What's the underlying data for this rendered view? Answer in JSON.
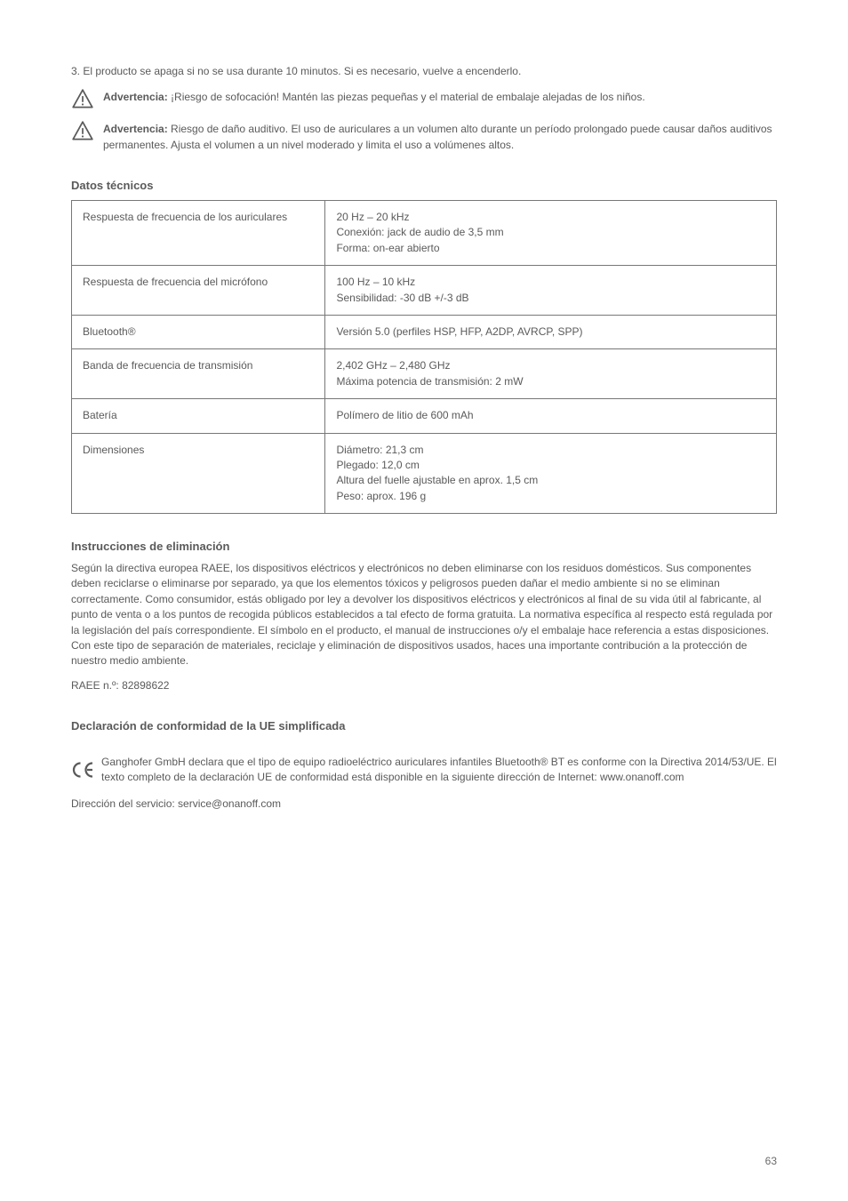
{
  "warnings": {
    "w1_bold": "Advertencia:",
    "w1_text": " ¡Riesgo de sofocación! Mantén las piezas pequeñas y el material de embalaje alejadas de los niños.",
    "w2_bold": "Advertencia:",
    "w2_text": " Riesgo de daño auditivo. El uso de auriculares a un volumen alto durante un período prolongado puede causar daños auditivos permanentes. Ajusta el volumen a un nivel moderado y limita el uso a volúmenes altos.",
    "w3": "3. El producto se apaga si no se usa durante 10 minutos. Si es necesario, vuelve a encenderlo."
  },
  "specs": {
    "title": "Datos técnicos",
    "rows": [
      {
        "l": "Respuesta de frecuencia de los auriculares",
        "r": "20 Hz – 20 kHz\nConexión: jack de audio de 3,5 mm\nForma: on-ear abierto"
      },
      {
        "l": "Respuesta de frecuencia del micrófono",
        "r": "100 Hz – 10 kHz\nSensibilidad: -30 dB +/-3 dB"
      },
      {
        "l": "Bluetooth®",
        "r": "Versión 5.0 (perfiles HSP, HFP, A2DP, AVRCP, SPP)"
      },
      {
        "l": "Banda de frecuencia de transmisión",
        "r": "2,402 GHz – 2,480 GHz\nMáxima potencia de transmisión: 2 mW"
      },
      {
        "l": "Batería",
        "r": "Polímero de litio de 600 mAh"
      },
      {
        "l": "Dimensiones",
        "r": "Diámetro: 21,3 cm\nPlegado: 12,0 cm\nAltura del fuelle ajustable en aprox. 1,5 cm\nPeso: aprox. 196 g"
      }
    ]
  },
  "disposal": {
    "title": "Instrucciones de eliminación",
    "p1": "Según la directiva europea RAEE, los dispositivos eléctricos y electrónicos no deben eliminarse con los residuos domésticos. Sus componentes deben reciclarse o eliminarse por separado, ya que los elementos tóxicos y peligrosos pueden dañar el medio ambiente si no se eliminan correctamente. Como consumidor, estás obligado por ley a devolver los dispositivos eléctricos y electrónicos al final de su vida útil al fabricante, al punto de venta o a los puntos de recogida públicos establecidos a tal efecto de forma gratuita. La normativa específica al respecto está regulada por la legislación del país correspondiente. El símbolo en el producto, el manual de instrucciones o/y el embalaje hace referencia a estas disposiciones. Con este tipo de separación de materiales, reciclaje y eliminación de dispositivos usados, haces una importante contribución a la protección de nuestro medio ambiente.",
    "p2": "RAEE n.º: 82898622"
  },
  "ce": {
    "title": "Declaración de conformidad de la UE simplificada",
    "p1": "Ganghofer GmbH declara que el tipo de equipo radioeléctrico auriculares infantiles Bluetooth® BT es conforme con la Directiva 2014/53/UE. El texto completo de la declaración UE de conformidad está disponible en la siguiente dirección de Internet: www.onanoff.com",
    "cert": "Dirección del servicio: service@onanoff.com"
  },
  "page_number": "63",
  "colors": {
    "text": "#5a5a5a",
    "border": "#777777",
    "background": "#ffffff"
  },
  "typography": {
    "body_fontsize": 12,
    "heading_fontsize": 13,
    "font_family": "Arial"
  }
}
